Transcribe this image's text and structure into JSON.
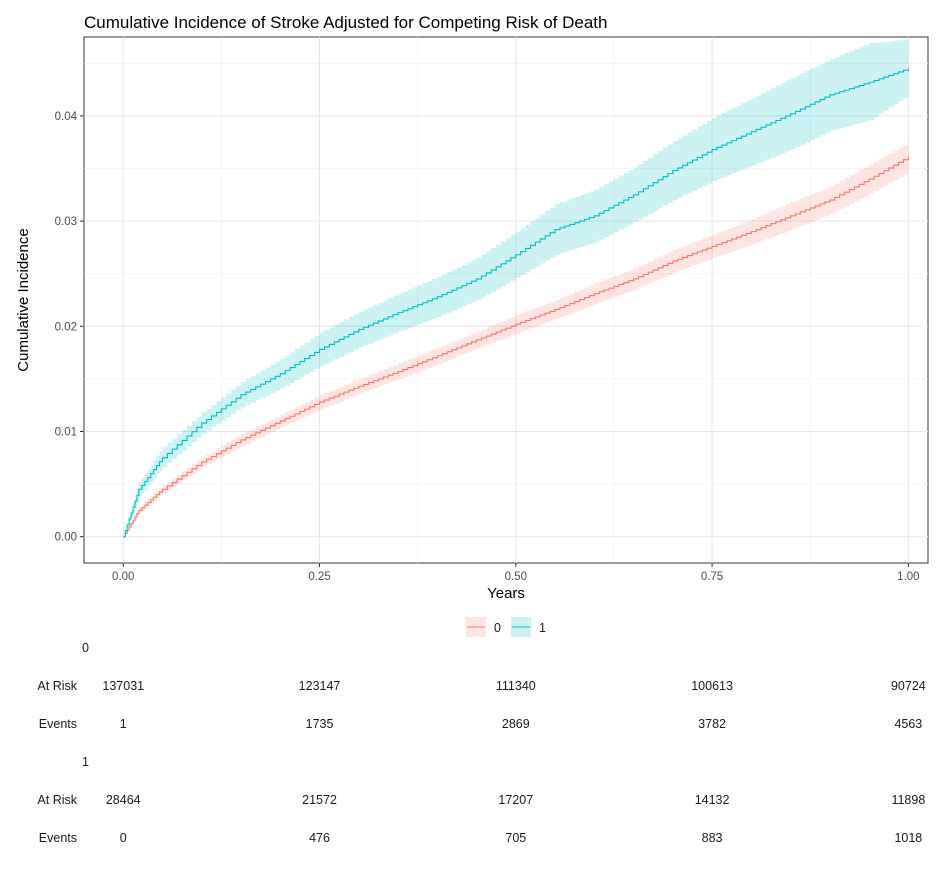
{
  "chart_data": {
    "type": "line",
    "title": "Cumulative Incidence of Stroke Adjusted for Competing Risk of Death",
    "xlabel": "Years",
    "ylabel": "Cumulative Incidence",
    "xlim": [
      -0.05,
      1.025
    ],
    "ylim": [
      -0.0025,
      0.0475
    ],
    "x_ticks": [
      "0.00",
      "0.25",
      "0.50",
      "0.75",
      "1.00"
    ],
    "x_tick_values": [
      0,
      0.25,
      0.5,
      0.75,
      1.0
    ],
    "y_ticks": [
      "0.00",
      "0.01",
      "0.02",
      "0.03",
      "0.04"
    ],
    "y_tick_values": [
      0,
      0.01,
      0.02,
      0.03,
      0.04
    ],
    "grid": true,
    "legend_position": "bottom",
    "series": [
      {
        "name": "0",
        "color": "#f8766d",
        "x": [
          0,
          0.02,
          0.05,
          0.1,
          0.15,
          0.2,
          0.25,
          0.3,
          0.35,
          0.4,
          0.45,
          0.5,
          0.55,
          0.6,
          0.65,
          0.7,
          0.75,
          0.8,
          0.85,
          0.9,
          0.95,
          1.0
        ],
        "y": [
          0,
          0.0025,
          0.0045,
          0.0071,
          0.0092,
          0.011,
          0.0128,
          0.0143,
          0.0157,
          0.0172,
          0.0187,
          0.0202,
          0.0216,
          0.0231,
          0.0245,
          0.0262,
          0.0276,
          0.029,
          0.0305,
          0.032,
          0.034,
          0.0361
        ],
        "lower": [
          0,
          0.0022,
          0.0041,
          0.0066,
          0.0086,
          0.0104,
          0.0121,
          0.0136,
          0.015,
          0.0164,
          0.0179,
          0.0193,
          0.0207,
          0.0221,
          0.0235,
          0.0251,
          0.0265,
          0.0278,
          0.0292,
          0.0307,
          0.0326,
          0.0347
        ],
        "upper": [
          0,
          0.0028,
          0.0049,
          0.0076,
          0.0098,
          0.0116,
          0.0135,
          0.015,
          0.0165,
          0.018,
          0.0195,
          0.0211,
          0.0225,
          0.0241,
          0.0255,
          0.0273,
          0.0287,
          0.0302,
          0.0318,
          0.0333,
          0.0354,
          0.0375
        ]
      },
      {
        "name": "1",
        "color": "#00bfc4",
        "x": [
          0,
          0.02,
          0.05,
          0.1,
          0.15,
          0.2,
          0.25,
          0.3,
          0.35,
          0.4,
          0.45,
          0.5,
          0.55,
          0.6,
          0.65,
          0.7,
          0.75,
          0.8,
          0.85,
          0.9,
          0.95,
          1.0
        ],
        "y": [
          0,
          0.0045,
          0.0075,
          0.0108,
          0.0135,
          0.0155,
          0.0178,
          0.0197,
          0.0213,
          0.0228,
          0.0245,
          0.0268,
          0.0292,
          0.0305,
          0.0325,
          0.0348,
          0.0368,
          0.0385,
          0.0402,
          0.042,
          0.0432,
          0.0445
        ],
        "lower": [
          0,
          0.0038,
          0.0066,
          0.0098,
          0.0123,
          0.0141,
          0.0162,
          0.018,
          0.0195,
          0.0209,
          0.0225,
          0.0246,
          0.0268,
          0.028,
          0.0299,
          0.032,
          0.0338,
          0.0353,
          0.0368,
          0.0386,
          0.0396,
          0.042
        ],
        "upper": [
          0,
          0.0052,
          0.0085,
          0.0118,
          0.0147,
          0.0169,
          0.0194,
          0.0214,
          0.0231,
          0.0247,
          0.0265,
          0.029,
          0.0316,
          0.033,
          0.0351,
          0.0376,
          0.0398,
          0.0417,
          0.0436,
          0.0454,
          0.0469,
          0.0473
        ]
      }
    ]
  },
  "risk_table": {
    "x": [
      0,
      0.25,
      0.5,
      0.75,
      1.0
    ],
    "groups": [
      {
        "label": "0",
        "rows": [
          {
            "label": "At Risk",
            "values": [
              "137031",
              "123147",
              "111340",
              "100613",
              "90724"
            ]
          },
          {
            "label": "Events",
            "values": [
              "1",
              "1735",
              "2869",
              "3782",
              "4563"
            ]
          }
        ]
      },
      {
        "label": "1",
        "rows": [
          {
            "label": "At Risk",
            "values": [
              "28464",
              "21572",
              "17207",
              "14132",
              "11898"
            ]
          },
          {
            "label": "Events",
            "values": [
              "0",
              "476",
              "705",
              "883",
              "1018"
            ]
          }
        ]
      }
    ]
  }
}
